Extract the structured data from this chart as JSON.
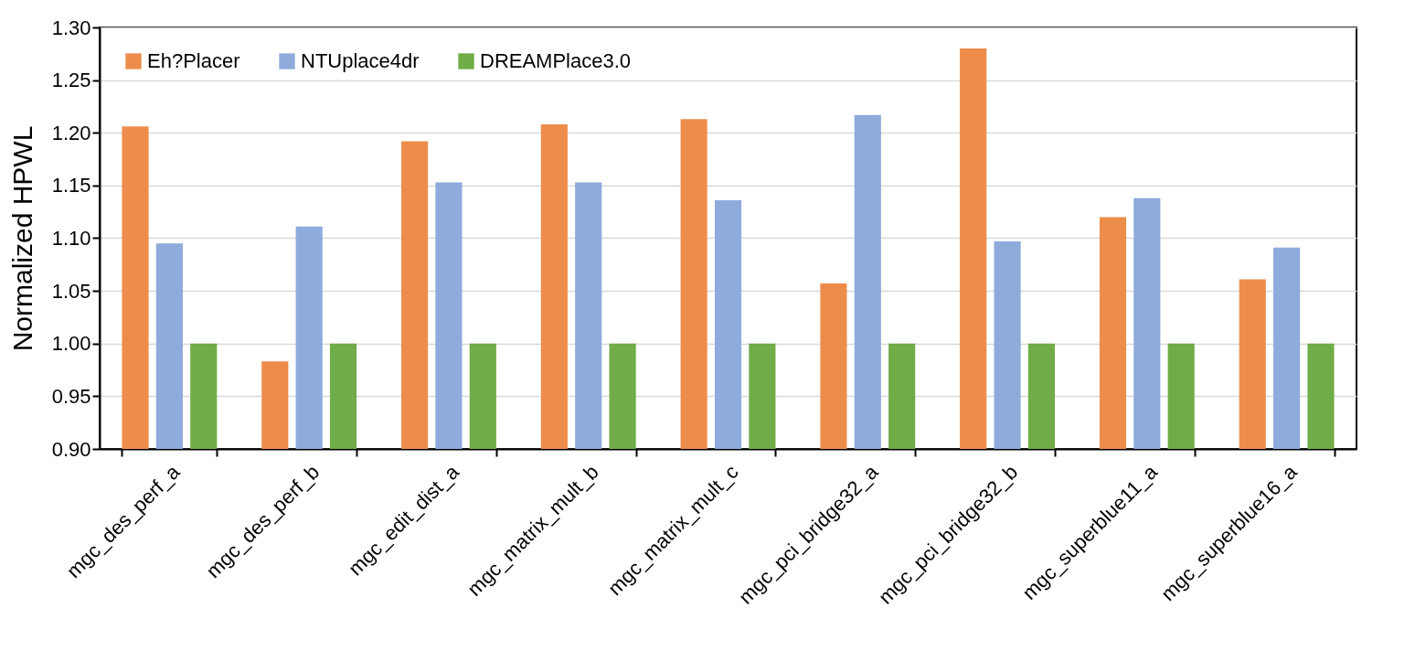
{
  "chart_data": {
    "type": "bar",
    "ylabel": "Normalized HPWL",
    "categories": [
      "mgc_des_perf_a",
      "mgc_des_perf_b",
      "mgc_edit_dist_a",
      "mgc_matrix_mult_b",
      "mgc_matrix_mult_c",
      "mgc_pci_bridge32_a",
      "mgc_pci_bridge32_b",
      "mgc_superblue11_a",
      "mgc_superblue16_a"
    ],
    "series": [
      {
        "name": "Eh?Placer",
        "color": "#ed8d4c",
        "values": [
          1.206,
          0.983,
          1.192,
          1.208,
          1.213,
          1.057,
          1.28,
          1.12,
          1.061
        ]
      },
      {
        "name": "NTUplace4dr",
        "color": "#8eabdc",
        "values": [
          1.095,
          1.111,
          1.153,
          1.153,
          1.136,
          1.217,
          1.097,
          1.138,
          1.091
        ]
      },
      {
        "name": "DREAMPlace3.0",
        "color": "#70ac47",
        "values": [
          1.0,
          1.0,
          1.0,
          1.0,
          1.0,
          1.0,
          1.0,
          1.0,
          1.0
        ]
      }
    ],
    "ylim": [
      0.9,
      1.3
    ],
    "yticks": [
      {
        "value": 0.9,
        "label": "0.90"
      },
      {
        "value": 0.95,
        "label": "0.95"
      },
      {
        "value": 1.0,
        "label": "1.00"
      },
      {
        "value": 1.05,
        "label": "1.05"
      },
      {
        "value": 1.1,
        "label": "1.10"
      },
      {
        "value": 1.15,
        "label": "1.15"
      },
      {
        "value": 1.2,
        "label": "1.20"
      },
      {
        "value": 1.25,
        "label": "1.25"
      },
      {
        "value": 1.3,
        "label": "1.30"
      }
    ],
    "grid": "y",
    "legend": "top left"
  }
}
